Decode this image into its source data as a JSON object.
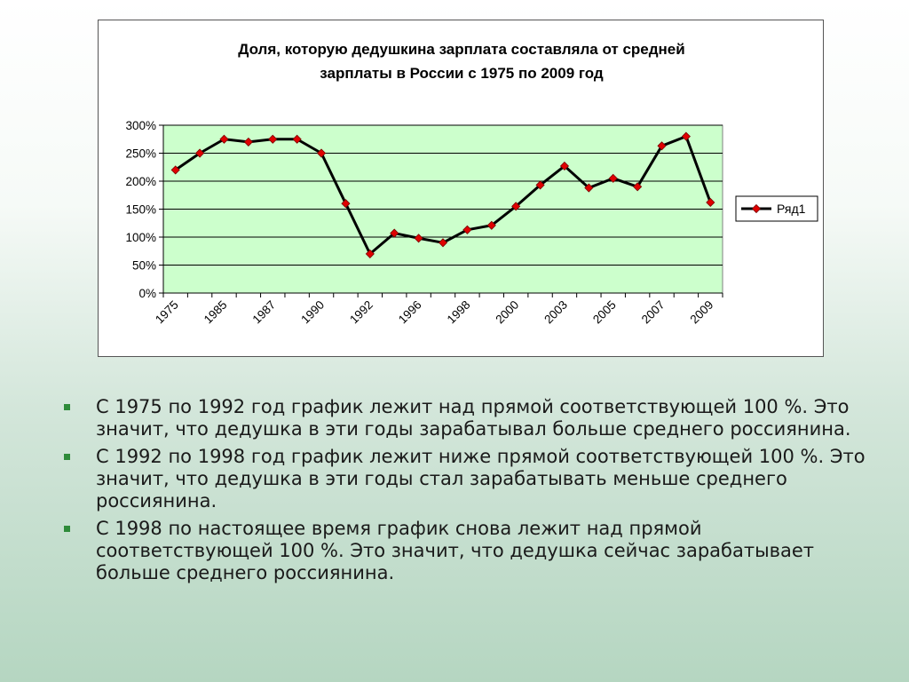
{
  "chart_data": {
    "type": "line",
    "title_lines": [
      "Доля, которую дедушкина зарплата составляла от средней",
      "зарплаты в России с 1975 по 2009 год"
    ],
    "y_ticks": [
      "0%",
      "50%",
      "100%",
      "150%",
      "200%",
      "250%",
      "300%"
    ],
    "ylim": [
      0,
      300
    ],
    "y_unit": "%",
    "x_tick_labels": [
      "1975",
      "1985",
      "1987",
      "1990",
      "1992",
      "1996",
      "1998",
      "2000",
      "2003",
      "2005",
      "2007",
      "2009"
    ],
    "grid": "horizontal",
    "legend_position": "right",
    "plot_background": "#ccffcc",
    "line_color": "#000000",
    "marker_color": "#e00000",
    "series": [
      {
        "name": "Ряд1",
        "values": [
          220,
          250,
          275,
          270,
          275,
          275,
          250,
          160,
          70,
          107,
          98,
          90,
          113,
          121,
          155,
          193,
          227,
          188,
          205,
          190,
          263,
          280,
          162
        ]
      }
    ]
  },
  "bullets": [
    "С 1975 по 1992 год график лежит над прямой соответствующей 100 %. Это значит, что дедушка в эти годы зарабатывал больше среднего россиянина.",
    "С 1992 по 1998 год график лежит ниже прямой соответствующей 100 %. Это значит, что дедушка в эти годы стал зарабатывать меньше среднего россиянина.",
    "С 1998 по настоящее время график снова лежит над прямой соответствующей 100 %. Это значит, что дедушка сейчас зарабатывает больше среднего россиянина."
  ],
  "colors": {
    "bullet_marker": "#2e8b3a"
  }
}
